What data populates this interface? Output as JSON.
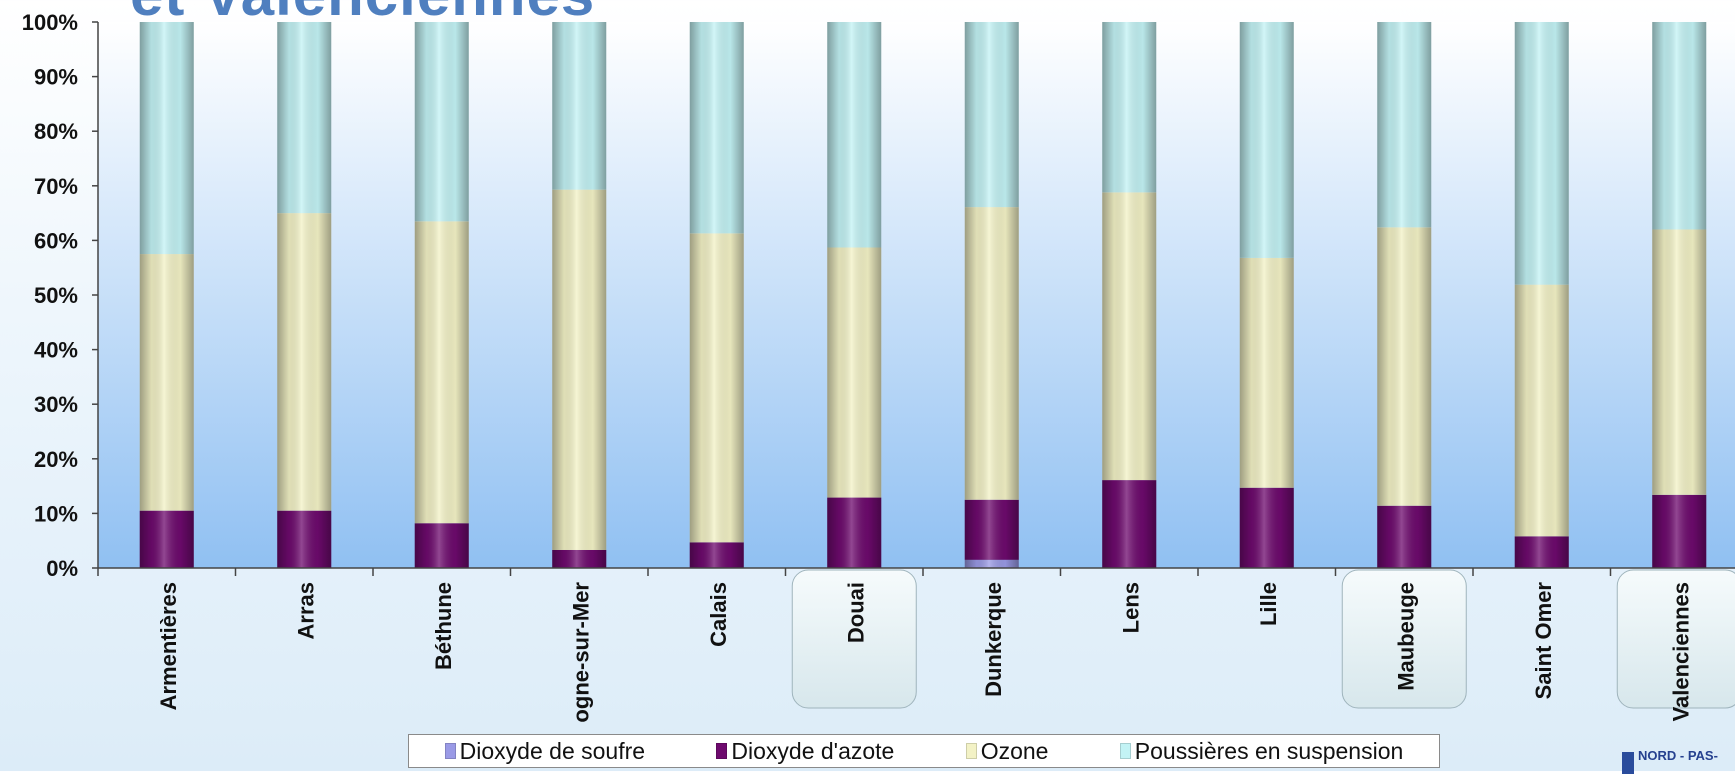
{
  "page": {
    "title": "et Valenciennes",
    "logo_text": "NORD - PAS-"
  },
  "colors": {
    "dioxyde_de_soufre": "#9a9ae6",
    "dioxyde_d_azote": "#6e0a6e",
    "ozone": "#f3f2c6",
    "poussieres": "#c3f3f5",
    "plot_top": "#ffffff",
    "plot_bottom": "#90c0f2",
    "highlight_box": "#e8f2f5"
  },
  "chart_data": {
    "type": "bar",
    "stacked": "percent",
    "categories": [
      "Armentières",
      "Arras",
      "Béthune",
      "Boulogne-sur-Mer",
      "Calais",
      "Douai",
      "Dunkerque",
      "Lens",
      "Lille",
      "Maubeuge",
      "Saint Omer",
      "Valenciennes"
    ],
    "category_labels_visible": [
      "Armentières",
      "Arras",
      "Béthune",
      "ogne-sur-Mer",
      "Calais",
      "Douai",
      "Dunkerque",
      "Lens",
      "Lille",
      "Maubeuge",
      "Saint Omer",
      "Valenciennes"
    ],
    "highlighted_categories": [
      "Douai",
      "Maubeuge",
      "Valenciennes"
    ],
    "series": [
      {
        "name": "Dioxyde de soufre",
        "values": [
          0,
          0,
          0,
          0,
          0,
          0,
          1.5,
          0,
          0,
          0,
          0,
          0
        ]
      },
      {
        "name": "Dioxyde d'azote",
        "values": [
          10.5,
          10.5,
          8.2,
          3.3,
          4.7,
          12.9,
          11.0,
          16.1,
          14.7,
          11.4,
          5.8,
          13.4
        ]
      },
      {
        "name": "Ozone",
        "values": [
          47.0,
          54.5,
          55.3,
          66.0,
          56.6,
          45.8,
          53.6,
          52.7,
          42.1,
          51.0,
          46.1,
          48.6
        ]
      },
      {
        "name": "Poussières en suspension",
        "values": [
          42.5,
          35.0,
          36.5,
          30.7,
          38.7,
          41.3,
          33.9,
          31.2,
          43.2,
          37.6,
          48.1,
          38.0
        ]
      }
    ],
    "ylim": [
      0,
      100
    ],
    "yticks": [
      "0%",
      "10%",
      "20%",
      "30%",
      "40%",
      "50%",
      "60%",
      "70%",
      "80%",
      "90%",
      "100%"
    ],
    "xlabel": "",
    "ylabel": "",
    "grid": false,
    "legend_position": "bottom"
  }
}
